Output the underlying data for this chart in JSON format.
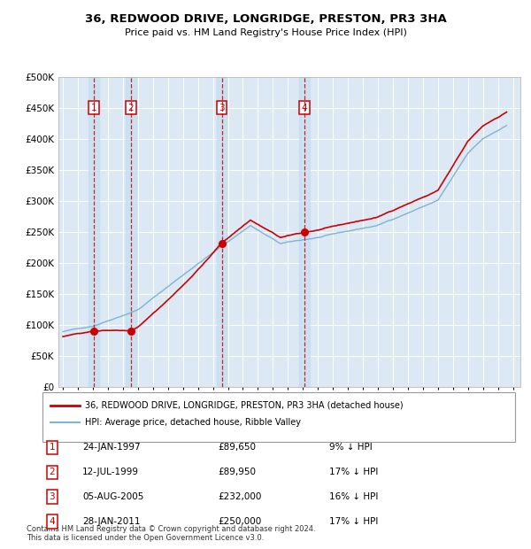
{
  "title": "36, REDWOOD DRIVE, LONGRIDGE, PRESTON, PR3 3HA",
  "subtitle": "Price paid vs. HM Land Registry's House Price Index (HPI)",
  "ylim": [
    0,
    500000
  ],
  "yticks": [
    0,
    50000,
    100000,
    150000,
    200000,
    250000,
    300000,
    350000,
    400000,
    450000,
    500000
  ],
  "ytick_labels": [
    "£0",
    "£50K",
    "£100K",
    "£150K",
    "£200K",
    "£250K",
    "£300K",
    "£350K",
    "£400K",
    "£450K",
    "£500K"
  ],
  "xlim_start": 1994.7,
  "xlim_end": 2025.5,
  "background_color": "#ffffff",
  "plot_bg_color": "#dce9f5",
  "grid_color": "#ffffff",
  "sale_line_color": "#cc0000",
  "hpi_line_color": "#7fb3d3",
  "sale_dot_color": "#cc0000",
  "vline_color": "#cc0000",
  "sales": [
    {
      "num": 1,
      "year": 1997.07,
      "price": 89650
    },
    {
      "num": 2,
      "year": 1999.54,
      "price": 89950
    },
    {
      "num": 3,
      "year": 2005.59,
      "price": 232000
    },
    {
      "num": 4,
      "year": 2011.08,
      "price": 250000
    }
  ],
  "legend_line1": "36, REDWOOD DRIVE, LONGRIDGE, PRESTON, PR3 3HA (detached house)",
  "legend_line2": "HPI: Average price, detached house, Ribble Valley",
  "table_data": [
    [
      "1",
      "24-JAN-1997",
      "£89,650",
      "9% ↓ HPI"
    ],
    [
      "2",
      "12-JUL-1999",
      "£89,950",
      "17% ↓ HPI"
    ],
    [
      "3",
      "05-AUG-2005",
      "£232,000",
      "16% ↓ HPI"
    ],
    [
      "4",
      "28-JAN-2011",
      "£250,000",
      "17% ↓ HPI"
    ]
  ],
  "footnote": "Contains HM Land Registry data © Crown copyright and database right 2024.\nThis data is licensed under the Open Government Licence v3.0."
}
